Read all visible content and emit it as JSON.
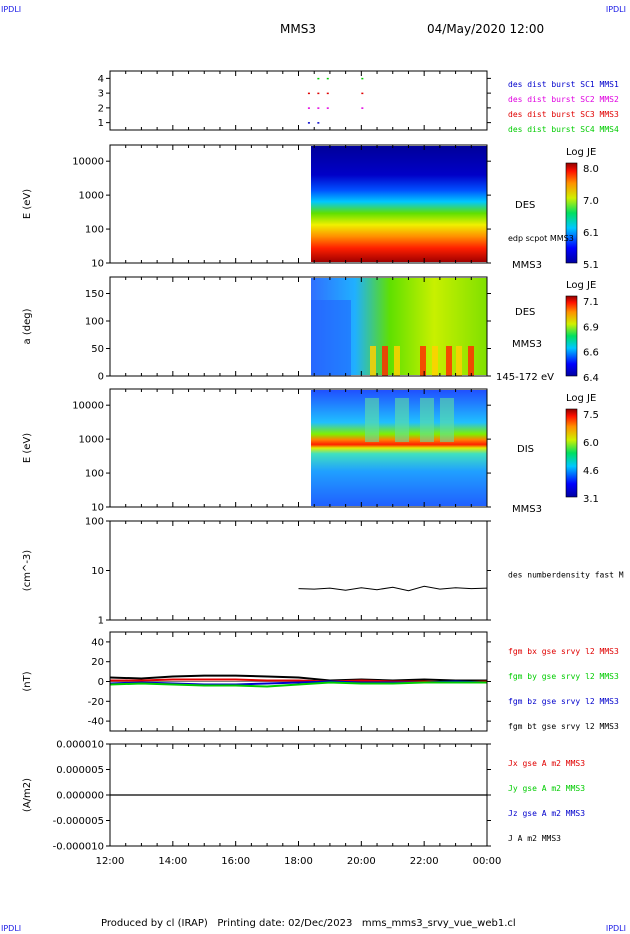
{
  "corners": {
    "tl": "IPDLI",
    "tr": "IPDLI",
    "bl": "IPDLI",
    "br": "IPDLI"
  },
  "header": {
    "title": "MMS3",
    "date": "04/May/2020 12:00"
  },
  "footer": "Produced by cl (IRAP)   Printing date: 02/Dec/2023   mms_mms3_srvy_vue_web1.cl",
  "colors": {
    "blue": "#0000cc",
    "magenta": "#e000e0",
    "red": "#e00000",
    "green": "#00cc00",
    "black": "#000000"
  },
  "chart_data": [
    {
      "type": "scatter",
      "panel": "burst",
      "yticks": [
        "1",
        "2",
        "3",
        "4"
      ],
      "ylim": [
        0.5,
        4.5
      ],
      "legend": [
        {
          "text": "des dist burst SC1 MMS1",
          "color": "#0000cc"
        },
        {
          "text": "des dist burst SC2 MMS2",
          "color": "#e000e0"
        },
        {
          "text": "des dist burst SC3 MMS3",
          "color": "#e00000"
        },
        {
          "text": "des dist burst SC4 MMS4",
          "color": "#00cc00"
        }
      ],
      "series": [
        {
          "level": 4,
          "color": "#00cc00",
          "x_hours": [
            18.6,
            18.9,
            20.0
          ]
        },
        {
          "level": 3,
          "color": "#e00000",
          "x_hours": [
            18.3,
            18.6,
            18.9,
            20.0
          ]
        },
        {
          "level": 2,
          "color": "#e000e0",
          "x_hours": [
            18.3,
            18.6,
            18.9,
            20.0
          ]
        },
        {
          "level": 1,
          "color": "#0000cc",
          "x_hours": [
            18.3,
            18.6
          ]
        }
      ]
    },
    {
      "type": "heatmap",
      "panel": "des_energy",
      "ylabel": "E (eV)",
      "yscale": "log",
      "ylim": [
        10,
        30000
      ],
      "yticks": [
        "10",
        "100",
        "1000",
        "10000"
      ],
      "data_start_hour": 18.0,
      "colorbar": {
        "title": "Log JE",
        "ticks": [
          "8.0",
          "7.0",
          "6.1",
          "5.1"
        ]
      },
      "labels": [
        "DES",
        "edp scpot MMS3",
        "MMS3"
      ]
    },
    {
      "type": "heatmap",
      "panel": "des_pitch",
      "ylabel": "a (deg)",
      "ylim": [
        0,
        180
      ],
      "yticks": [
        "0",
        "50",
        "100",
        "150"
      ],
      "data_start_hour": 18.0,
      "colorbar": {
        "title": "Log JE",
        "ticks": [
          "7.1",
          "6.9",
          "6.6",
          "6.4"
        ]
      },
      "labels": [
        "DES",
        "MMS3",
        "145-172 eV"
      ]
    },
    {
      "type": "heatmap",
      "panel": "dis_energy",
      "ylabel": "E (eV)",
      "yscale": "log",
      "ylim": [
        10,
        30000
      ],
      "yticks": [
        "10",
        "100",
        "1000",
        "10000"
      ],
      "data_start_hour": 18.0,
      "colorbar": {
        "title": "Log JE",
        "ticks": [
          "7.5",
          "6.0",
          "4.6",
          "3.1"
        ]
      },
      "labels": [
        "DIS",
        "MMS3"
      ]
    },
    {
      "type": "line",
      "panel": "density",
      "ylabel": "(cm^-3)",
      "yscale": "log",
      "ylim": [
        1,
        100
      ],
      "yticks": [
        "1",
        "10",
        "100"
      ],
      "legend": [
        {
          "text": "des numberdensity fast M",
          "color": "#000000"
        }
      ],
      "x_hours": [
        18.0,
        18.5,
        19.0,
        19.5,
        20.0,
        20.5,
        21.0,
        21.5,
        22.0,
        22.5,
        23.0,
        23.5,
        24.0
      ],
      "values": [
        4.3,
        4.2,
        4.4,
        4.0,
        4.5,
        4.1,
        4.6,
        3.9,
        4.8,
        4.2,
        4.5,
        4.3,
        4.4
      ]
    },
    {
      "type": "line",
      "panel": "magnetic_field",
      "ylabel": "(nT)",
      "ylim": [
        -50,
        50
      ],
      "yticks": [
        "-40",
        "-20",
        "0",
        "20",
        "40"
      ],
      "legend": [
        {
          "text": "fgm bx gse srvy l2 MMS3",
          "color": "#e00000"
        },
        {
          "text": "fgm by gse srvy l2 MMS3",
          "color": "#00cc00"
        },
        {
          "text": "fgm bz gse srvy l2 MMS3",
          "color": "#0000cc"
        },
        {
          "text": "fgm bt gse srvy l2 MMS3",
          "color": "#000000"
        }
      ],
      "x_hours": [
        12,
        13,
        14,
        15,
        16,
        17,
        18,
        19,
        20,
        21,
        22,
        23,
        24
      ],
      "series": [
        {
          "color": "#000000",
          "values": [
            4,
            3,
            5,
            6,
            6,
            5,
            4,
            1,
            2,
            1,
            2,
            1,
            1
          ]
        },
        {
          "color": "#e00000",
          "values": [
            1,
            1,
            2,
            2,
            2,
            1,
            1,
            0,
            1,
            0,
            0,
            -1,
            0
          ]
        },
        {
          "color": "#0000cc",
          "values": [
            -2,
            -1,
            -2,
            -3,
            -3,
            -2,
            -1,
            0,
            -1,
            -1,
            -1,
            0,
            -1
          ]
        },
        {
          "color": "#00cc00",
          "values": [
            -3,
            -2,
            -3,
            -4,
            -4,
            -5,
            -3,
            -1,
            -2,
            -2,
            -1,
            -1,
            -1
          ]
        }
      ]
    },
    {
      "type": "line",
      "panel": "current",
      "ylabel": "(A/m2)",
      "ylim": [
        -1e-05,
        1e-05
      ],
      "yticks": [
        "-0.000010",
        "-0.000005",
        "0.000000",
        "0.000005",
        "0.000010"
      ],
      "legend": [
        {
          "text": "Jx gse A m2 MMS3",
          "color": "#e00000"
        },
        {
          "text": "Jy gse A m2 MMS3",
          "color": "#00cc00"
        },
        {
          "text": "Jz gse A m2 MMS3",
          "color": "#0000cc"
        },
        {
          "text": "J A m2 MMS3",
          "color": "#000000"
        }
      ],
      "x_hours": [
        12,
        24
      ],
      "values": [
        0,
        0
      ]
    }
  ],
  "xaxis": {
    "ticks": [
      "12:00",
      "14:00",
      "16:00",
      "18:00",
      "20:00",
      "22:00",
      "00:00"
    ],
    "start_hour": 12,
    "end_hour": 24
  }
}
